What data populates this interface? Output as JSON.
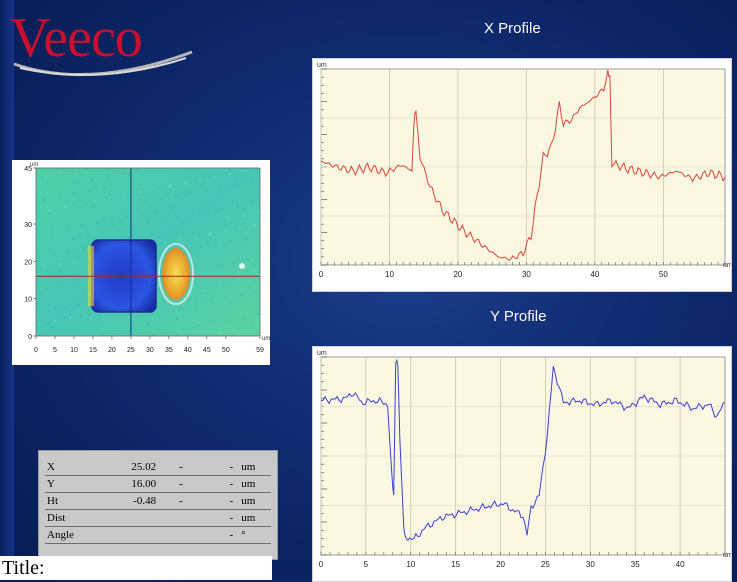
{
  "logo": {
    "text": "Veeco",
    "color": "#c8102e"
  },
  "x_profile": {
    "title": "X Profile",
    "y_unit": "um",
    "x_unit": "um",
    "x_ticks": [
      "0",
      "10",
      "20",
      "30",
      "40",
      "50"
    ],
    "line_color": "#d9443a"
  },
  "y_profile": {
    "title": "Y Profile",
    "y_unit": "um",
    "x_unit": "um",
    "x_ticks": [
      "0",
      "5",
      "10",
      "15",
      "20",
      "25",
      "30",
      "35",
      "40"
    ],
    "line_color": "#3b3fd8"
  },
  "image": {
    "axis_unit": "um",
    "y_ticks": [
      "45",
      "30",
      "20",
      "10",
      "0"
    ],
    "x_ticks": [
      "0",
      "5",
      "10",
      "15",
      "20",
      "25",
      "30",
      "35",
      "40",
      "45",
      "50",
      "59"
    ]
  },
  "readout": {
    "rows": [
      {
        "label": "X",
        "value": "25.02",
        "d1": "-",
        "d2": "-",
        "unit": "um"
      },
      {
        "label": "Y",
        "value": "16.00",
        "d1": "-",
        "d2": "-",
        "unit": "um"
      },
      {
        "label": "Ht",
        "value": "-0.48",
        "d1": "-",
        "d2": "-",
        "unit": "um"
      },
      {
        "label": "Dist",
        "value": "",
        "d1": "",
        "d2": "-",
        "unit": "um"
      },
      {
        "label": "Angle",
        "value": "",
        "d1": "",
        "d2": "-",
        "unit": "°"
      }
    ]
  },
  "bottom": {
    "title_text": "Title:"
  }
}
